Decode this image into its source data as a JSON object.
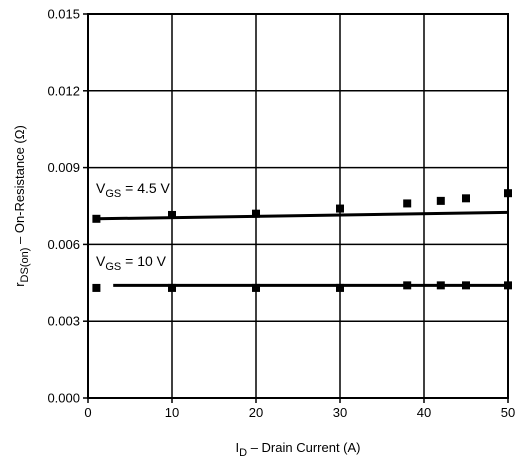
{
  "chart_data": {
    "type": "scatter",
    "x_axis": {
      "label_main": "I",
      "label_sub": "D",
      "label_rest": " – Drain Current (A)",
      "min": 0,
      "max": 50,
      "ticks": [
        0,
        10,
        20,
        30,
        40,
        50
      ],
      "tick_labels": [
        "0",
        "10",
        "20",
        "30",
        "40",
        "50"
      ]
    },
    "y_axis": {
      "label_main": "r",
      "label_sub": "DS(on)",
      "label_rest": " – On-Resistance (Ω)",
      "min": 0,
      "max": 0.015,
      "ticks": [
        0,
        0.003,
        0.006,
        0.009,
        0.012,
        0.015
      ],
      "tick_labels": [
        "0.000",
        "0.003",
        "0.006",
        "0.009",
        "0.012",
        "0.015"
      ]
    },
    "grid": true,
    "series": [
      {
        "name_main": "V",
        "name_sub": "GS",
        "name_rest": " = 4.5 V",
        "marker": "square",
        "x": [
          1,
          10,
          20,
          30,
          38,
          42,
          45,
          50
        ],
        "y": [
          0.007,
          0.00715,
          0.0072,
          0.0074,
          0.0076,
          0.0077,
          0.0078,
          0.008
        ],
        "fit_line": {
          "x": [
            1,
            50
          ],
          "y": [
            0.007,
            0.00725
          ]
        }
      },
      {
        "name_main": "V",
        "name_sub": "GS",
        "name_rest": " = 10 V",
        "marker": "square",
        "x": [
          1,
          10,
          20,
          30,
          38,
          42,
          45,
          50
        ],
        "y": [
          0.0043,
          0.0043,
          0.0043,
          0.0043,
          0.0044,
          0.0044,
          0.0044,
          0.0044
        ],
        "fit_line": {
          "x": [
            3,
            50
          ],
          "y": [
            0.0044,
            0.0044
          ]
        }
      }
    ]
  }
}
